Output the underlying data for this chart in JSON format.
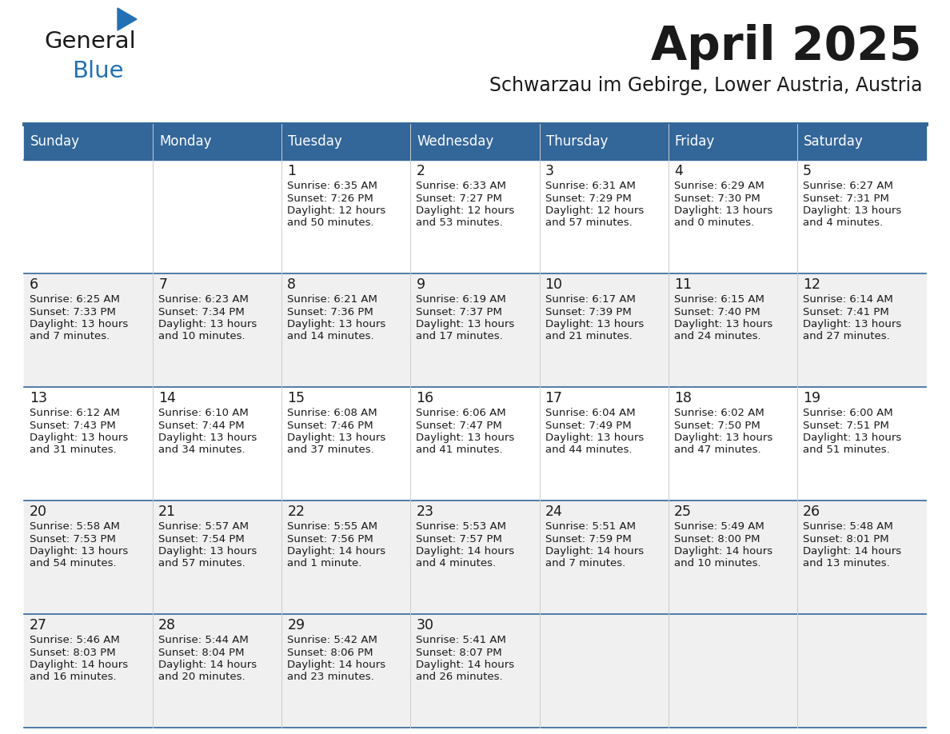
{
  "title": "April 2025",
  "subtitle": "Schwarzau im Gebirge, Lower Austria, Austria",
  "header_color": "#336699",
  "header_text_color": "#FFFFFF",
  "cell_bg_white": "#FFFFFF",
  "cell_bg_gray": "#F0F0F0",
  "border_blue": "#336699",
  "border_gray": "#CCCCCC",
  "text_color": "#1a1a1a",
  "logo_color_general": "#1a1a1a",
  "logo_color_blue": "#2271B3",
  "logo_triangle_color": "#2271B3",
  "day_names": [
    "Sunday",
    "Monday",
    "Tuesday",
    "Wednesday",
    "Thursday",
    "Friday",
    "Saturday"
  ],
  "week_bg": [
    "white",
    "gray",
    "white",
    "gray",
    "gray"
  ],
  "weeks": [
    [
      {
        "day": "",
        "lines": []
      },
      {
        "day": "",
        "lines": []
      },
      {
        "day": "1",
        "lines": [
          "Sunrise: 6:35 AM",
          "Sunset: 7:26 PM",
          "Daylight: 12 hours",
          "and 50 minutes."
        ]
      },
      {
        "day": "2",
        "lines": [
          "Sunrise: 6:33 AM",
          "Sunset: 7:27 PM",
          "Daylight: 12 hours",
          "and 53 minutes."
        ]
      },
      {
        "day": "3",
        "lines": [
          "Sunrise: 6:31 AM",
          "Sunset: 7:29 PM",
          "Daylight: 12 hours",
          "and 57 minutes."
        ]
      },
      {
        "day": "4",
        "lines": [
          "Sunrise: 6:29 AM",
          "Sunset: 7:30 PM",
          "Daylight: 13 hours",
          "and 0 minutes."
        ]
      },
      {
        "day": "5",
        "lines": [
          "Sunrise: 6:27 AM",
          "Sunset: 7:31 PM",
          "Daylight: 13 hours",
          "and 4 minutes."
        ]
      }
    ],
    [
      {
        "day": "6",
        "lines": [
          "Sunrise: 6:25 AM",
          "Sunset: 7:33 PM",
          "Daylight: 13 hours",
          "and 7 minutes."
        ]
      },
      {
        "day": "7",
        "lines": [
          "Sunrise: 6:23 AM",
          "Sunset: 7:34 PM",
          "Daylight: 13 hours",
          "and 10 minutes."
        ]
      },
      {
        "day": "8",
        "lines": [
          "Sunrise: 6:21 AM",
          "Sunset: 7:36 PM",
          "Daylight: 13 hours",
          "and 14 minutes."
        ]
      },
      {
        "day": "9",
        "lines": [
          "Sunrise: 6:19 AM",
          "Sunset: 7:37 PM",
          "Daylight: 13 hours",
          "and 17 minutes."
        ]
      },
      {
        "day": "10",
        "lines": [
          "Sunrise: 6:17 AM",
          "Sunset: 7:39 PM",
          "Daylight: 13 hours",
          "and 21 minutes."
        ]
      },
      {
        "day": "11",
        "lines": [
          "Sunrise: 6:15 AM",
          "Sunset: 7:40 PM",
          "Daylight: 13 hours",
          "and 24 minutes."
        ]
      },
      {
        "day": "12",
        "lines": [
          "Sunrise: 6:14 AM",
          "Sunset: 7:41 PM",
          "Daylight: 13 hours",
          "and 27 minutes."
        ]
      }
    ],
    [
      {
        "day": "13",
        "lines": [
          "Sunrise: 6:12 AM",
          "Sunset: 7:43 PM",
          "Daylight: 13 hours",
          "and 31 minutes."
        ]
      },
      {
        "day": "14",
        "lines": [
          "Sunrise: 6:10 AM",
          "Sunset: 7:44 PM",
          "Daylight: 13 hours",
          "and 34 minutes."
        ]
      },
      {
        "day": "15",
        "lines": [
          "Sunrise: 6:08 AM",
          "Sunset: 7:46 PM",
          "Daylight: 13 hours",
          "and 37 minutes."
        ]
      },
      {
        "day": "16",
        "lines": [
          "Sunrise: 6:06 AM",
          "Sunset: 7:47 PM",
          "Daylight: 13 hours",
          "and 41 minutes."
        ]
      },
      {
        "day": "17",
        "lines": [
          "Sunrise: 6:04 AM",
          "Sunset: 7:49 PM",
          "Daylight: 13 hours",
          "and 44 minutes."
        ]
      },
      {
        "day": "18",
        "lines": [
          "Sunrise: 6:02 AM",
          "Sunset: 7:50 PM",
          "Daylight: 13 hours",
          "and 47 minutes."
        ]
      },
      {
        "day": "19",
        "lines": [
          "Sunrise: 6:00 AM",
          "Sunset: 7:51 PM",
          "Daylight: 13 hours",
          "and 51 minutes."
        ]
      }
    ],
    [
      {
        "day": "20",
        "lines": [
          "Sunrise: 5:58 AM",
          "Sunset: 7:53 PM",
          "Daylight: 13 hours",
          "and 54 minutes."
        ]
      },
      {
        "day": "21",
        "lines": [
          "Sunrise: 5:57 AM",
          "Sunset: 7:54 PM",
          "Daylight: 13 hours",
          "and 57 minutes."
        ]
      },
      {
        "day": "22",
        "lines": [
          "Sunrise: 5:55 AM",
          "Sunset: 7:56 PM",
          "Daylight: 14 hours",
          "and 1 minute."
        ]
      },
      {
        "day": "23",
        "lines": [
          "Sunrise: 5:53 AM",
          "Sunset: 7:57 PM",
          "Daylight: 14 hours",
          "and 4 minutes."
        ]
      },
      {
        "day": "24",
        "lines": [
          "Sunrise: 5:51 AM",
          "Sunset: 7:59 PM",
          "Daylight: 14 hours",
          "and 7 minutes."
        ]
      },
      {
        "day": "25",
        "lines": [
          "Sunrise: 5:49 AM",
          "Sunset: 8:00 PM",
          "Daylight: 14 hours",
          "and 10 minutes."
        ]
      },
      {
        "day": "26",
        "lines": [
          "Sunrise: 5:48 AM",
          "Sunset: 8:01 PM",
          "Daylight: 14 hours",
          "and 13 minutes."
        ]
      }
    ],
    [
      {
        "day": "27",
        "lines": [
          "Sunrise: 5:46 AM",
          "Sunset: 8:03 PM",
          "Daylight: 14 hours",
          "and 16 minutes."
        ]
      },
      {
        "day": "28",
        "lines": [
          "Sunrise: 5:44 AM",
          "Sunset: 8:04 PM",
          "Daylight: 14 hours",
          "and 20 minutes."
        ]
      },
      {
        "day": "29",
        "lines": [
          "Sunrise: 5:42 AM",
          "Sunset: 8:06 PM",
          "Daylight: 14 hours",
          "and 23 minutes."
        ]
      },
      {
        "day": "30",
        "lines": [
          "Sunrise: 5:41 AM",
          "Sunset: 8:07 PM",
          "Daylight: 14 hours",
          "and 26 minutes."
        ]
      },
      {
        "day": "",
        "lines": []
      },
      {
        "day": "",
        "lines": []
      },
      {
        "day": "",
        "lines": []
      }
    ]
  ]
}
